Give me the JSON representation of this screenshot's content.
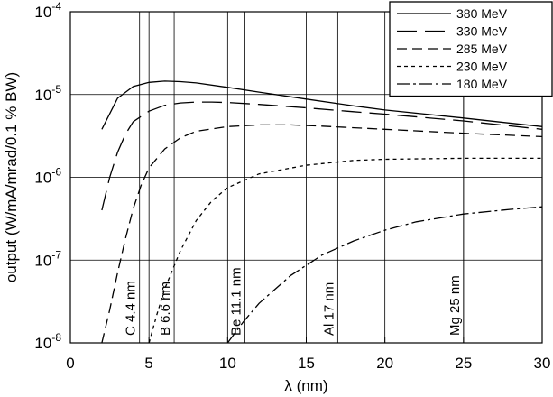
{
  "chart_data": {
    "type": "line",
    "xlabel": "λ (nm)",
    "ylabel": "output (W/mA/mrad/0.1 % BW)",
    "xlim": [
      0,
      30
    ],
    "ylim": [
      1e-08,
      0.0001
    ],
    "yscale": "log",
    "x_ticks": [
      "0",
      "5",
      "10",
      "15",
      "20",
      "25",
      "30"
    ],
    "y_ticks": [
      {
        "base": "10",
        "exp": "-8"
      },
      {
        "base": "10",
        "exp": "-7"
      },
      {
        "base": "10",
        "exp": "-6"
      },
      {
        "base": "10",
        "exp": "-5"
      },
      {
        "base": "10",
        "exp": "-4"
      }
    ],
    "grid": true,
    "legend": {
      "position": "top-right"
    },
    "edges": [
      {
        "label": "C 4.4 nm",
        "x": 4.4
      },
      {
        "label": "B 6.6 nm",
        "x": 6.6
      },
      {
        "label": "Be 11.1 nm",
        "x": 11.1
      },
      {
        "label": "Al 17 nm",
        "x": 17
      },
      {
        "label": "Mg 25 nm",
        "x": 25
      }
    ],
    "series": [
      {
        "name": "380 MeV",
        "dash": "",
        "points": [
          [
            2,
            3.8e-06
          ],
          [
            3,
            9e-06
          ],
          [
            4,
            1.25e-05
          ],
          [
            5,
            1.4e-05
          ],
          [
            6,
            1.45e-05
          ],
          [
            7,
            1.43e-05
          ],
          [
            8,
            1.38e-05
          ],
          [
            10,
            1.22e-05
          ],
          [
            12,
            1.07e-05
          ],
          [
            15,
            8.8e-06
          ],
          [
            18,
            7.3e-06
          ],
          [
            20,
            6.5e-06
          ],
          [
            25,
            5.2e-06
          ],
          [
            30,
            4.1e-06
          ]
        ]
      },
      {
        "name": "330 MeV",
        "dash": "22,9",
        "points": [
          [
            2,
            4e-07
          ],
          [
            2.5,
            1e-06
          ],
          [
            3,
            2e-06
          ],
          [
            3.5,
            3.3e-06
          ],
          [
            4,
            4.7e-06
          ],
          [
            5,
            6.3e-06
          ],
          [
            6,
            7.4e-06
          ],
          [
            7,
            7.9e-06
          ],
          [
            8,
            8.1e-06
          ],
          [
            9,
            8.1e-06
          ],
          [
            10,
            8e-06
          ],
          [
            12,
            7.6e-06
          ],
          [
            15,
            6.9e-06
          ],
          [
            18,
            6.2e-06
          ],
          [
            20,
            5.8e-06
          ],
          [
            25,
            4.8e-06
          ],
          [
            30,
            3.8e-06
          ]
        ]
      },
      {
        "name": "285 MeV",
        "dash": "11,6",
        "points": [
          [
            2,
            1e-08
          ],
          [
            2.5,
            2.5e-08
          ],
          [
            3,
            7e-08
          ],
          [
            3.5,
            1.8e-07
          ],
          [
            4,
            4.2e-07
          ],
          [
            4.5,
            8e-07
          ],
          [
            5,
            1.3e-06
          ],
          [
            6,
            2.2e-06
          ],
          [
            7,
            3e-06
          ],
          [
            8,
            3.6e-06
          ],
          [
            10,
            4.1e-06
          ],
          [
            12,
            4.3e-06
          ],
          [
            14,
            4.3e-06
          ],
          [
            16,
            4.15e-06
          ],
          [
            20,
            3.8e-06
          ],
          [
            25,
            3.4e-06
          ],
          [
            30,
            3.1e-06
          ]
        ]
      },
      {
        "name": "230 MeV",
        "dash": "4,4",
        "points": [
          [
            5,
            1e-08
          ],
          [
            5.5,
            2.2e-08
          ],
          [
            6,
            4.5e-08
          ],
          [
            7,
            1.3e-07
          ],
          [
            8,
            3e-07
          ],
          [
            9,
            5.2e-07
          ],
          [
            10,
            7.5e-07
          ],
          [
            12,
            1.1e-06
          ],
          [
            15,
            1.4e-06
          ],
          [
            18,
            1.6e-06
          ],
          [
            20,
            1.65e-06
          ],
          [
            25,
            1.7e-06
          ],
          [
            30,
            1.7e-06
          ]
        ]
      },
      {
        "name": "180 MeV",
        "dash": "14,4,3,4",
        "points": [
          [
            10,
            1e-08
          ],
          [
            11,
            1.8e-08
          ],
          [
            12,
            3e-08
          ],
          [
            14,
            6.5e-08
          ],
          [
            16,
            1.15e-07
          ],
          [
            18,
            1.7e-07
          ],
          [
            20,
            2.3e-07
          ],
          [
            22,
            2.9e-07
          ],
          [
            25,
            3.6e-07
          ],
          [
            28,
            4.1e-07
          ],
          [
            30,
            4.4e-07
          ]
        ]
      }
    ]
  }
}
